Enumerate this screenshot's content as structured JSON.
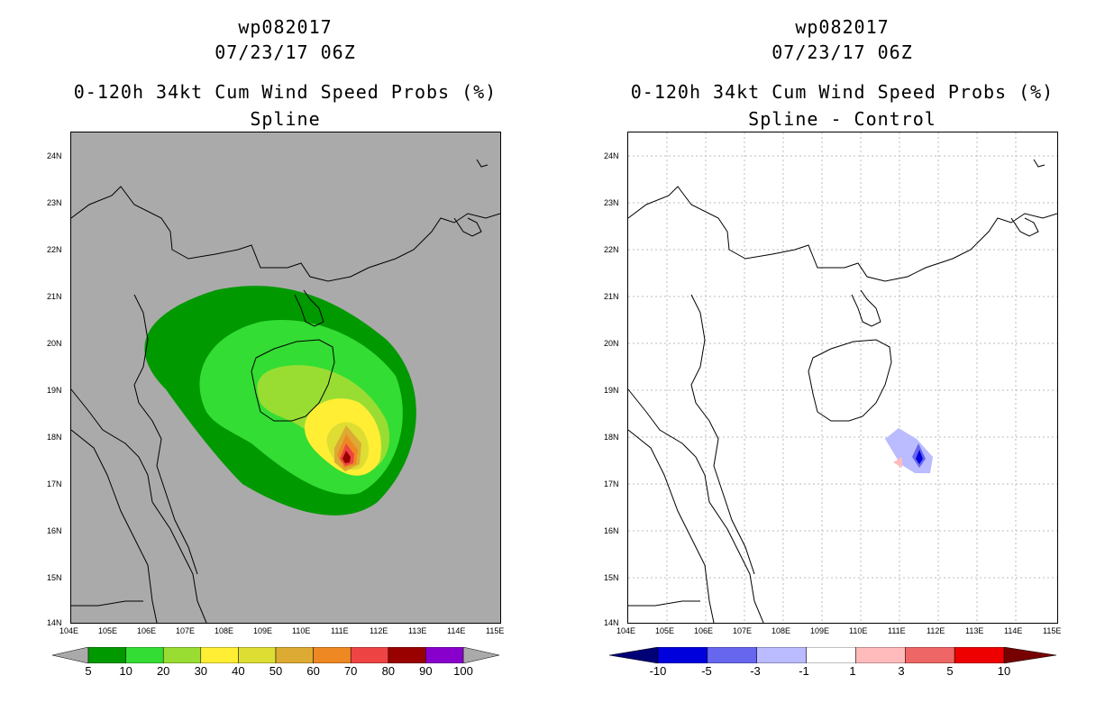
{
  "left": {
    "title_line1": "wp082017",
    "title_line2": "07/23/17 06Z",
    "title_line3": "0-120h 34kt Cum Wind Speed Probs (%)",
    "title_line4": "Spline",
    "colorbar_labels": [
      "5",
      "10",
      "20",
      "30",
      "40",
      "50",
      "60",
      "70",
      "80",
      "90",
      "100"
    ],
    "colorbar_colors": [
      "#009900",
      "#33dd33",
      "#99dd33",
      "#ffee33",
      "#dddd33",
      "#ddaa33",
      "#ee8822",
      "#ee4444",
      "#990000",
      "#8800cc"
    ],
    "background": "#aaaaaa"
  },
  "right": {
    "title_line1": "wp082017",
    "title_line2": "07/23/17 06Z",
    "title_line3": "0-120h 34kt Cum Wind Speed Probs (%)",
    "title_line4": "Spline - Control",
    "colorbar_labels": [
      "-10",
      "-5",
      "-3",
      "-1",
      "1",
      "3",
      "5",
      "10"
    ],
    "colorbar_colors": [
      "#0000dd",
      "#6666ee",
      "#bbbbff",
      "#ffffff",
      "#ffbbbb",
      "#ee6666",
      "#ee0000"
    ]
  },
  "axes": {
    "lat_labels": [
      "24N",
      "23N",
      "22N",
      "21N",
      "20N",
      "19N",
      "18N",
      "17N",
      "16N",
      "15N",
      "14N"
    ],
    "lon_labels": [
      "104E",
      "105E",
      "106E",
      "107E",
      "108E",
      "109E",
      "110E",
      "111E",
      "112E",
      "113E",
      "114E",
      "115E"
    ]
  }
}
